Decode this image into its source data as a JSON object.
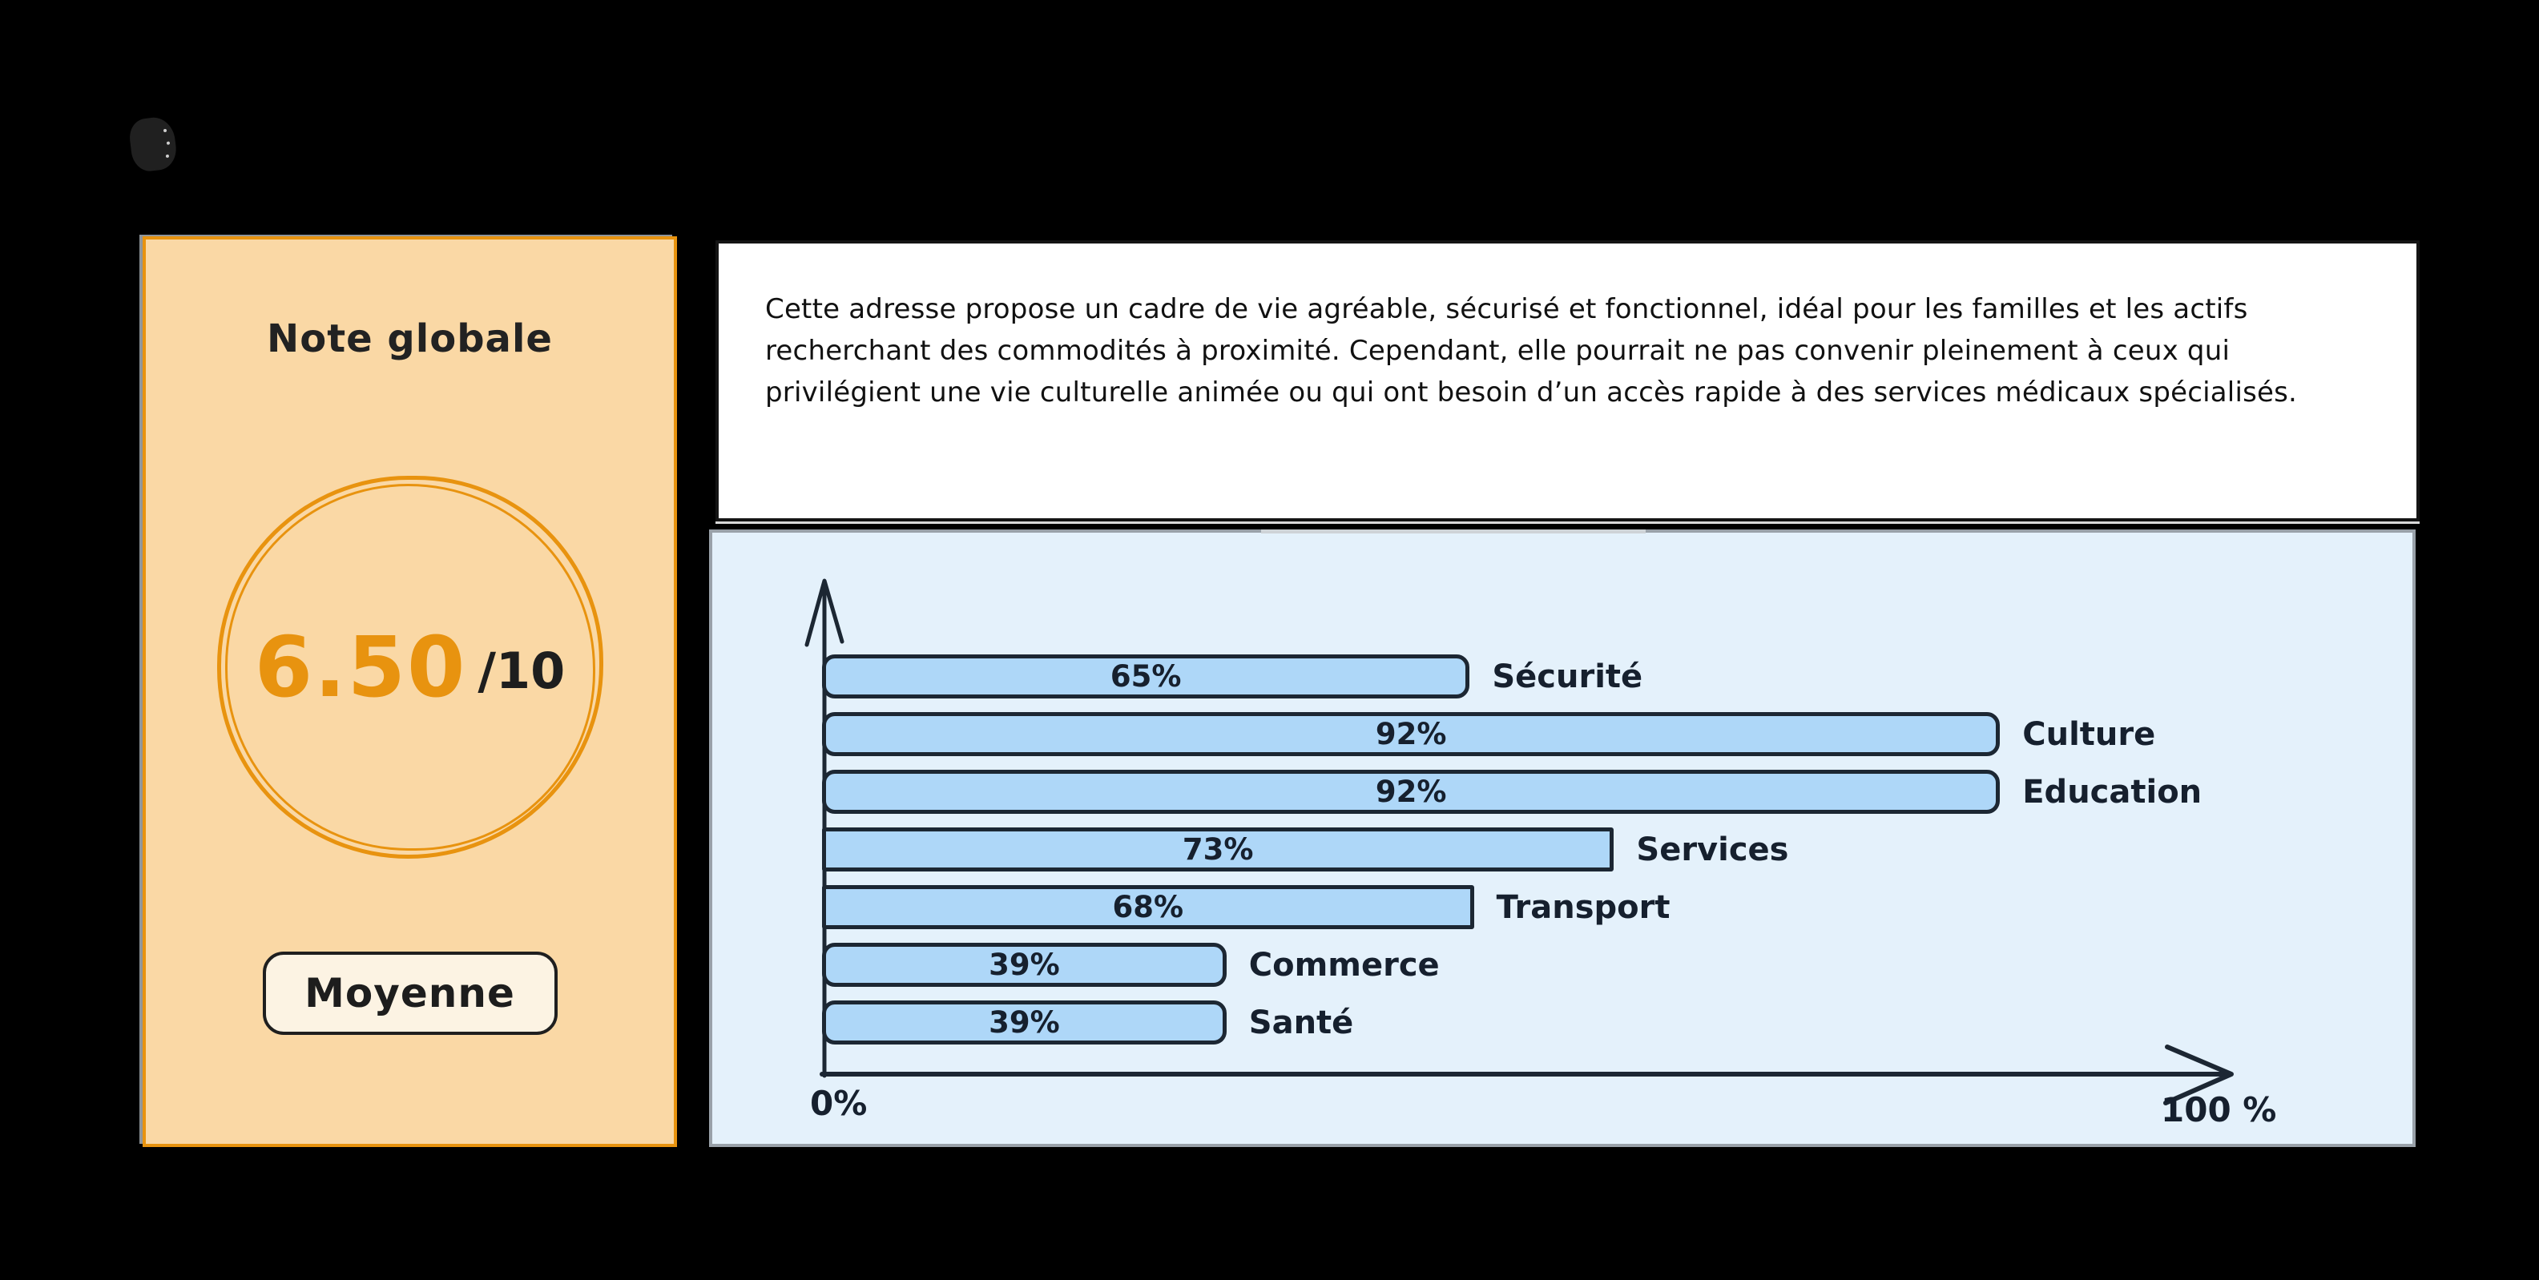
{
  "colors": {
    "page_bg": "#000000",
    "accent": "#E8930F",
    "peach_bg": "#FAD8A5",
    "badge_bg": "#FCF3E3",
    "chart_bg": "#E4F1FB",
    "chart_border": "#99A1A9",
    "bar_fill": "#AED7F8",
    "bar_border": "#1C2733"
  },
  "score_card": {
    "title": "Note globale",
    "score": "6.50",
    "score_suffix": "/10",
    "badge": "Moyenne"
  },
  "summary_card": {
    "text": "Cette adresse propose un cadre de vie agréable, sécurisé et fonctionnel, idéal pour les familles et les actifs recherchant des commodités à proximité. Cependant, elle pourrait ne pas convenir pleinement à ceux qui privilégient une vie culturelle animée ou qui ont besoin d’un accès rapide à des services médicaux spécialisés."
  },
  "chart_data": {
    "type": "bar",
    "orientation": "horizontal",
    "title": "",
    "xlabel": "",
    "ylabel": "",
    "categories": [
      "Sécurité",
      "Culture",
      "Education",
      "Services",
      "Transport",
      "Commerce",
      "Santé"
    ],
    "values": [
      65,
      92,
      92,
      73,
      68,
      39,
      39
    ],
    "value_labels": [
      "65%",
      "92%",
      "92%",
      "73%",
      "68%",
      "39%",
      "39%"
    ],
    "xlim": [
      0,
      100
    ],
    "xlabel_min": "0%",
    "xlabel_max": "100 %",
    "grid": false,
    "legend": false,
    "value_label_position": "inside-center",
    "category_label_position": "right-of-bar",
    "render_width_pct": [
      45.8,
      83.3,
      83.3,
      56.0,
      46.1,
      28.6,
      28.6
    ],
    "rounded_corners": [
      true,
      true,
      true,
      false,
      false,
      true,
      true
    ]
  }
}
